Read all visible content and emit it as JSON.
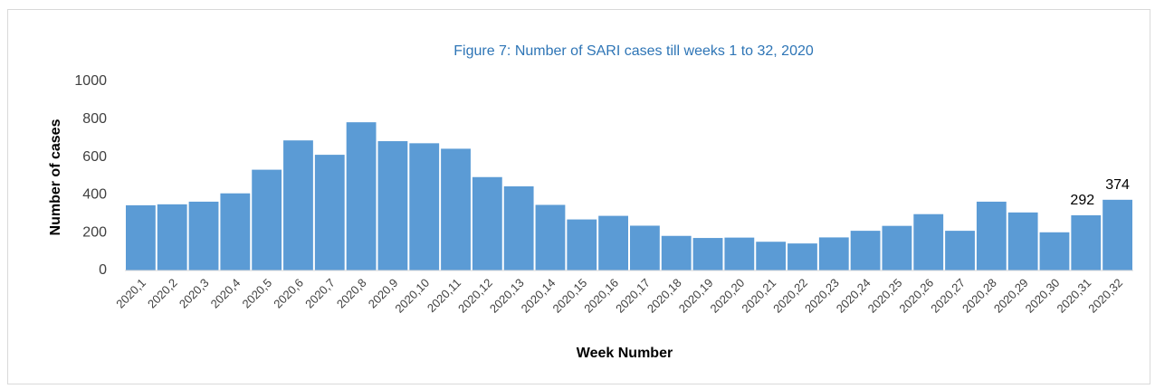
{
  "chart_data": {
    "type": "bar",
    "title": "Figure 7: Number of SARI cases till weeks 1 to 32, 2020",
    "x_label": "Week Number",
    "y_label": "Number of cases",
    "categories": [
      "2020,1",
      "2020,2",
      "2020,3",
      "2020,4",
      "2020,5",
      "2020,6",
      "2020,7",
      "2020,8",
      "2020,9",
      "2020,10",
      "2020,11",
      "2020,12",
      "2020,13",
      "2020,14",
      "2020,15",
      "2020,16",
      "2020,17",
      "2020,18",
      "2020,19",
      "2020,20",
      "2020,21",
      "2020,22",
      "2020,23",
      "2020,24",
      "2020,25",
      "2020,26",
      "2020,27",
      "2020,28",
      "2020,29",
      "2020,30",
      "2020,31",
      "2020,32"
    ],
    "values": [
      345,
      350,
      364,
      408,
      533,
      688,
      612,
      784,
      684,
      673,
      644,
      494,
      445,
      347,
      270,
      289,
      237,
      183,
      172,
      174,
      152,
      143,
      175,
      210,
      236,
      298,
      210,
      364,
      307,
      202,
      292,
      374
    ],
    "value_labels": [
      null,
      null,
      null,
      null,
      null,
      null,
      null,
      null,
      null,
      null,
      null,
      null,
      null,
      null,
      null,
      null,
      null,
      null,
      null,
      null,
      null,
      null,
      null,
      null,
      null,
      null,
      null,
      null,
      null,
      null,
      "292",
      "374"
    ],
    "color": "#5b9bd5",
    "ylim": [
      0,
      1000
    ],
    "yticks": [
      0,
      200,
      400,
      600,
      800,
      1000
    ],
    "grid": false
  }
}
